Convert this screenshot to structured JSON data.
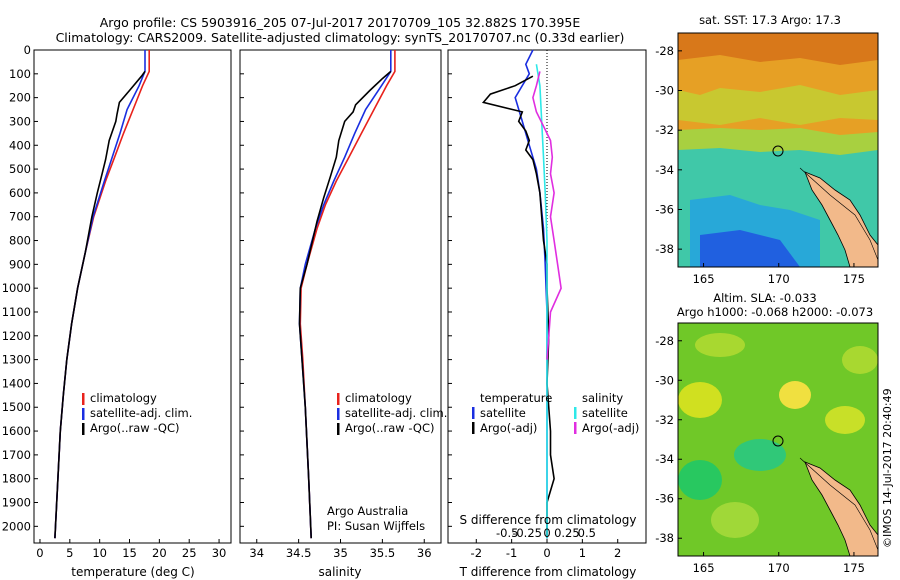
{
  "header": {
    "line1": "Argo profile: CS 5903916_205 07-Jul-2017 20170709_105 32.882S 170.395E",
    "line2": "Climatology: CARS2009. Satellite-adjusted climatology: synTS_20170707.nc (0.33d earlier)"
  },
  "colors": {
    "climatology": "#e8221c",
    "satellite": "#1a2ee0",
    "argo": "#000000",
    "salinity_sat": "#2ee8e8",
    "salinity_argo": "#e02ee0",
    "land": "#f2b98a"
  },
  "chart_data": [
    {
      "type": "line",
      "name": "temperature-profile",
      "xlabel": "temperature (deg C)",
      "ylabel": "",
      "xlim": [
        -1,
        32
      ],
      "ylim": [
        2070,
        0
      ],
      "xticks": [
        "0",
        "5",
        "10",
        "15",
        "20",
        "25",
        "30"
      ],
      "yticks": [
        "0",
        "100",
        "200",
        "300",
        "400",
        "500",
        "600",
        "700",
        "800",
        "900",
        "1000",
        "1100",
        "1200",
        "1300",
        "1400",
        "1500",
        "1600",
        "1700",
        "1800",
        "1900",
        "2000"
      ],
      "legend": [
        "climatology",
        "satellite-adj. clim.",
        "Argo(..raw -QC)"
      ],
      "series": [
        {
          "name": "climatology",
          "color": "#e8221c",
          "points": [
            [
              18.3,
              0
            ],
            [
              18.3,
              90
            ],
            [
              17.2,
              150
            ],
            [
              15.6,
              250
            ],
            [
              14.0,
              350
            ],
            [
              12.5,
              450
            ],
            [
              11.0,
              550
            ],
            [
              9.0,
              700
            ],
            [
              7.6,
              850
            ],
            [
              6.3,
              1000
            ],
            [
              5.3,
              1150
            ],
            [
              4.5,
              1300
            ],
            [
              3.9,
              1450
            ],
            [
              3.4,
              1600
            ],
            [
              3.0,
              1800
            ],
            [
              2.6,
              2000
            ],
            [
              2.5,
              2050
            ]
          ]
        },
        {
          "name": "satellite-adj. clim.",
          "color": "#1a2ee0",
          "points": [
            [
              17.6,
              0
            ],
            [
              17.6,
              90
            ],
            [
              16.6,
              150
            ],
            [
              14.6,
              250
            ],
            [
              13.4,
              350
            ],
            [
              12.1,
              450
            ],
            [
              10.8,
              550
            ],
            [
              8.9,
              700
            ],
            [
              7.6,
              850
            ],
            [
              6.3,
              1000
            ],
            [
              5.3,
              1150
            ],
            [
              4.5,
              1300
            ],
            [
              3.9,
              1450
            ],
            [
              3.4,
              1600
            ],
            [
              3.0,
              1800
            ],
            [
              2.6,
              2000
            ],
            [
              2.5,
              2050
            ]
          ]
        },
        {
          "name": "Argo(..raw -QC)",
          "color": "#000000",
          "points": [
            [
              17.6,
              90
            ],
            [
              17.0,
              110
            ],
            [
              15.0,
              170
            ],
            [
              13.3,
              220
            ],
            [
              12.9,
              270
            ],
            [
              12.7,
              300
            ],
            [
              11.6,
              380
            ],
            [
              11.0,
              460
            ],
            [
              10.4,
              520
            ],
            [
              9.6,
              600
            ],
            [
              8.7,
              700
            ],
            [
              7.6,
              850
            ],
            [
              6.3,
              1000
            ],
            [
              5.3,
              1150
            ],
            [
              4.5,
              1300
            ],
            [
              3.9,
              1450
            ],
            [
              3.4,
              1600
            ],
            [
              3.0,
              1800
            ],
            [
              2.6,
              2000
            ],
            [
              2.5,
              2050
            ]
          ]
        }
      ]
    },
    {
      "type": "line",
      "name": "salinity-profile",
      "xlabel": "salinity",
      "xlim": [
        33.8,
        36.2
      ],
      "ylim": [
        2070,
        0
      ],
      "xticks": [
        "34",
        "34.5",
        "35",
        "35.5",
        "36"
      ],
      "legend": [
        "climatology",
        "satellite-adj. clim.",
        "Argo(..raw -QC)"
      ],
      "annotation": [
        "Argo Australia",
        "PI: Susan Wijffels"
      ],
      "series": [
        {
          "name": "climatology",
          "color": "#e8221c",
          "points": [
            [
              35.65,
              0
            ],
            [
              35.65,
              90
            ],
            [
              35.55,
              150
            ],
            [
              35.4,
              250
            ],
            [
              35.25,
              350
            ],
            [
              35.1,
              450
            ],
            [
              34.95,
              550
            ],
            [
              34.82,
              650
            ],
            [
              34.72,
              750
            ],
            [
              34.6,
              900
            ],
            [
              34.53,
              1000
            ],
            [
              34.52,
              1150
            ],
            [
              34.55,
              1300
            ],
            [
              34.58,
              1500
            ],
            [
              34.62,
              1800
            ],
            [
              34.65,
              2050
            ]
          ]
        },
        {
          "name": "satellite-adj. clim.",
          "color": "#1a2ee0",
          "points": [
            [
              35.6,
              0
            ],
            [
              35.6,
              90
            ],
            [
              35.49,
              150
            ],
            [
              35.3,
              250
            ],
            [
              35.17,
              350
            ],
            [
              35.05,
              450
            ],
            [
              34.92,
              550
            ],
            [
              34.8,
              650
            ],
            [
              34.7,
              750
            ],
            [
              34.58,
              900
            ],
            [
              34.52,
              1000
            ],
            [
              34.51,
              1150
            ],
            [
              34.54,
              1300
            ],
            [
              34.58,
              1500
            ],
            [
              34.62,
              1800
            ],
            [
              34.65,
              2050
            ]
          ]
        },
        {
          "name": "Argo(..raw -QC)",
          "color": "#000000",
          "points": [
            [
              35.6,
              90
            ],
            [
              35.5,
              120
            ],
            [
              35.35,
              170
            ],
            [
              35.18,
              230
            ],
            [
              35.15,
              260
            ],
            [
              35.05,
              300
            ],
            [
              34.98,
              380
            ],
            [
              34.95,
              450
            ],
            [
              34.88,
              530
            ],
            [
              34.8,
              620
            ],
            [
              34.72,
              720
            ],
            [
              34.6,
              900
            ],
            [
              34.52,
              1000
            ],
            [
              34.51,
              1150
            ],
            [
              34.54,
              1300
            ],
            [
              34.58,
              1500
            ],
            [
              34.62,
              1800
            ],
            [
              34.65,
              2050
            ]
          ]
        }
      ]
    },
    {
      "type": "line",
      "name": "difference-profile",
      "xlabel": "T difference from climatology",
      "xlabel_top": "S difference from climatology",
      "xlim": [
        -2.8,
        2.8
      ],
      "ylim": [
        2070,
        0
      ],
      "xticks": [
        "-2",
        "-1",
        "0",
        "1",
        "2"
      ],
      "sticks": [
        "-0.5",
        "-0.25",
        "0",
        "0.25",
        "0.5"
      ],
      "legend_t_title": "temperature",
      "legend_s_title": "salinity",
      "legend": [
        "satellite",
        "Argo(-adj)",
        "satellite",
        "Argo(-adj)"
      ],
      "series": [
        {
          "name": "T satellite",
          "color": "#1a2ee0",
          "points": [
            [
              -0.4,
              0
            ],
            [
              -0.6,
              60
            ],
            [
              -0.5,
              100
            ],
            [
              -0.9,
              200
            ],
            [
              -0.7,
              300
            ],
            [
              -0.5,
              400
            ],
            [
              -0.3,
              500
            ],
            [
              -0.2,
              600
            ],
            [
              -0.1,
              750
            ],
            [
              -0.05,
              900
            ],
            [
              0,
              1100
            ],
            [
              0,
              1400
            ],
            [
              0,
              1700
            ],
            [
              0,
              2050
            ]
          ]
        },
        {
          "name": "T Argo(-adj)",
          "color": "#000000",
          "points": [
            [
              -0.4,
              110
            ],
            [
              -0.9,
              150
            ],
            [
              -1.6,
              185
            ],
            [
              -1.8,
              220
            ],
            [
              -0.7,
              260
            ],
            [
              -0.8,
              300
            ],
            [
              -0.6,
              340
            ],
            [
              -0.5,
              380
            ],
            [
              -0.6,
              420
            ],
            [
              -0.4,
              460
            ],
            [
              -0.3,
              520
            ],
            [
              -0.2,
              600
            ],
            [
              -0.15,
              700
            ],
            [
              -0.1,
              800
            ],
            [
              0,
              900
            ],
            [
              0,
              1000
            ],
            [
              0.05,
              1200
            ],
            [
              0,
              1400
            ],
            [
              0.1,
              1600
            ],
            [
              0.1,
              1700
            ],
            [
              0.2,
              1800
            ],
            [
              0,
              1900
            ],
            [
              0,
              2050
            ]
          ]
        },
        {
          "name": "S satellite",
          "color": "#2ee8e8",
          "points": [
            [
              -0.3,
              60
            ],
            [
              -0.2,
              150
            ],
            [
              -0.15,
              300
            ],
            [
              -0.1,
              450
            ],
            [
              -0.05,
              600
            ],
            [
              0,
              800
            ],
            [
              0,
              1100
            ],
            [
              0,
              1400
            ],
            [
              0,
              1700
            ],
            [
              0,
              2050
            ]
          ]
        },
        {
          "name": "S Argo(-adj)",
          "color": "#e02ee0",
          "points": [
            [
              -0.2,
              90
            ],
            [
              -0.3,
              150
            ],
            [
              -0.4,
              200
            ],
            [
              -0.3,
              260
            ],
            [
              -0.1,
              320
            ],
            [
              0.1,
              380
            ],
            [
              0.15,
              450
            ],
            [
              0.1,
              520
            ],
            [
              0.2,
              600
            ],
            [
              0.1,
              700
            ],
            [
              0.2,
              800
            ],
            [
              0.3,
              900
            ],
            [
              0.4,
              1000
            ],
            [
              0.1,
              1100
            ],
            [
              0.05,
              1200
            ],
            [
              0,
              1300
            ]
          ]
        }
      ]
    }
  ],
  "maps": {
    "sst": {
      "title": "sat. SST: 17.3 Argo: 17.3",
      "xticks": [
        "165",
        "170",
        "175"
      ],
      "yticks": [
        "-28",
        "-30",
        "-32",
        "-34",
        "-36",
        "-38"
      ]
    },
    "sla": {
      "title1": "Altim. SLA: -0.033",
      "title2": "Argo h1000: -0.068 h2000: -0.073",
      "xticks": [
        "165",
        "170",
        "175"
      ],
      "yticks": [
        "-28",
        "-30",
        "-32",
        "-34",
        "-36",
        "-38"
      ]
    }
  },
  "credit": "©IMOS 14-Jul-2017 20:40:49"
}
